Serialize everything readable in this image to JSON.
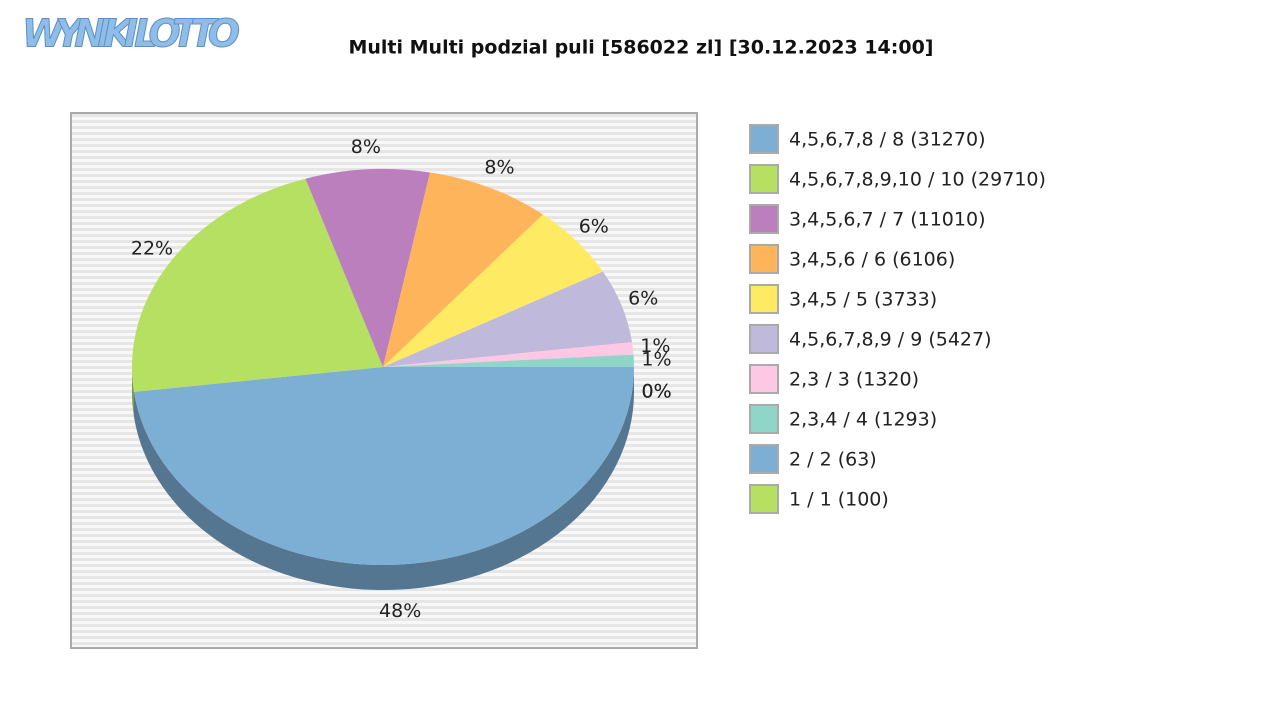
{
  "logo": "WYNIKI LOTTO",
  "chart_data": {
    "type": "pie",
    "title": "Multi Multi podzial puli [586022 zl] [30.12.2023 14:00]",
    "categories": [
      "4,5,6,7,8 / 8 (31270)",
      "4,5,6,7,8,9,10 / 10 (29710)",
      "3,4,5,6,7 / 7 (11010)",
      "3,4,5,6 / 6 (6106)",
      "3,4,5 / 5 (3733)",
      "4,5,6,7,8,9 / 9 (5427)",
      "2,3 / 3 (1320)",
      "2,3,4 / 4 (1293)",
      "2 / 2 (63)",
      "1 / 1 (100)"
    ],
    "values": [
      48,
      22,
      8,
      8,
      6,
      6,
      1,
      1,
      0,
      0
    ],
    "value_labels": [
      "48%",
      "22%",
      "8%",
      "8%",
      "6%",
      "6%",
      "1%",
      "1%",
      "0%",
      "0%"
    ],
    "colors": [
      "#7daed4",
      "#b5e061",
      "#bb7fbd",
      "#feb45a",
      "#feea63",
      "#bfb9db",
      "#fdc8e4",
      "#8fd6c9",
      "#7daed4",
      "#b5e061"
    ],
    "legend": "right"
  }
}
